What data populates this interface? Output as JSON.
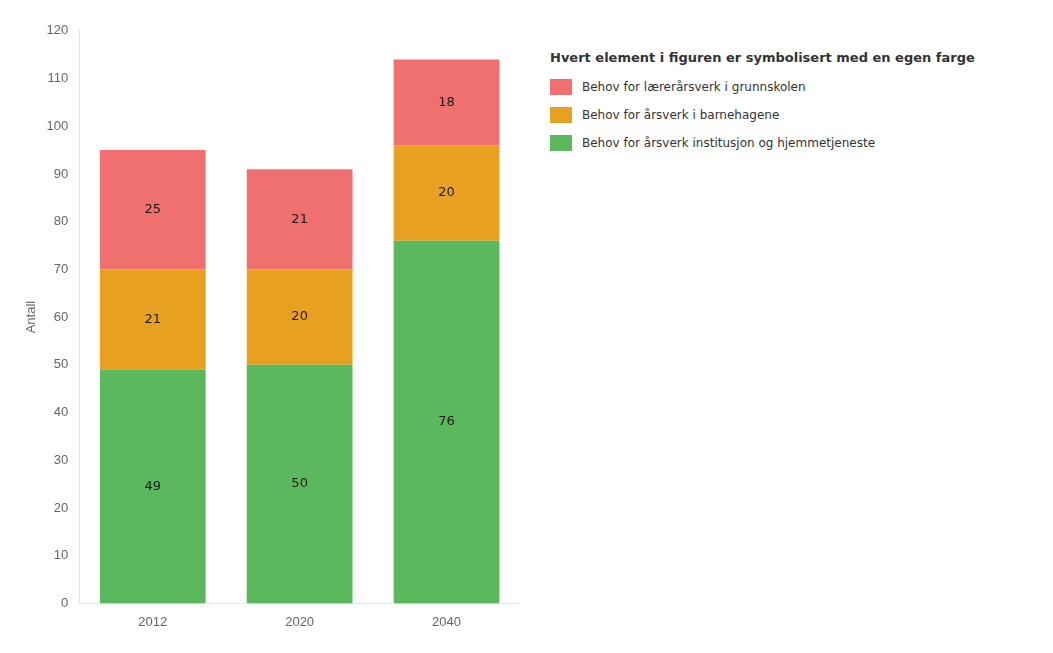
{
  "chart_data": {
    "type": "bar",
    "stacked": true,
    "data_labels": true,
    "ylabel": "Antall",
    "categories": [
      "2012",
      "2020",
      "2040"
    ],
    "series": [
      {
        "name": "Behov for årsverk institusjon og hjemmetjeneste",
        "color": "#5cb85c",
        "values": [
          49,
          50,
          76
        ]
      },
      {
        "name": "Behov for årsverk i barnehagene",
        "color": "#e8a020",
        "values": [
          21,
          20,
          20
        ]
      },
      {
        "name": "Behov for lærerårsverk i grunnskolen",
        "color": "#f07070",
        "values": [
          25,
          21,
          18
        ]
      }
    ],
    "ylim": [
      0,
      120
    ],
    "yticks": [
      0,
      10,
      20,
      30,
      40,
      50,
      60,
      70,
      80,
      90,
      100,
      110,
      120
    ],
    "grid": false,
    "legend": "right",
    "legend_title": "Hvert element i figuren er symbolisert med en egen farge"
  }
}
